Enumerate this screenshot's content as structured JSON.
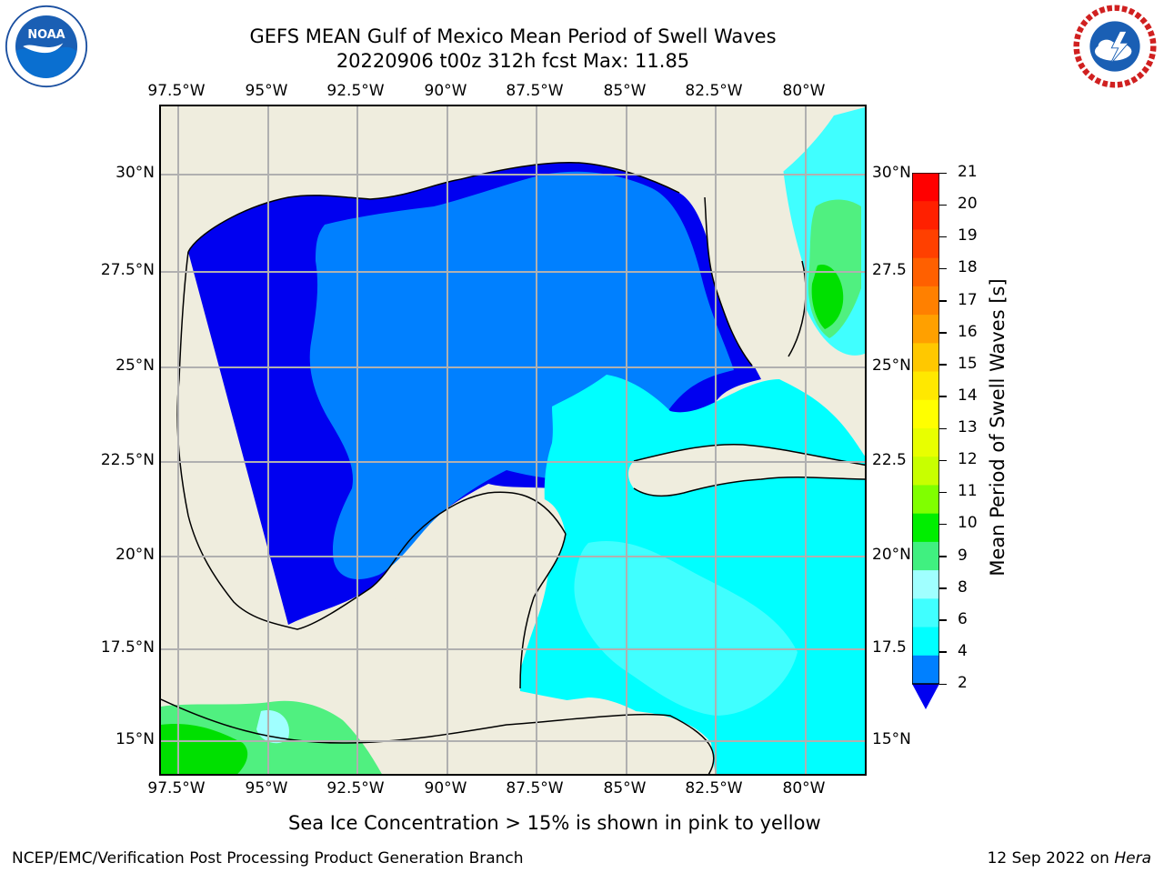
{
  "title": {
    "line1": "GEFS MEAN Gulf of Mexico Mean Period of Swell Waves",
    "line2": "20220906 t00z 312h fcst   Max: 11.85"
  },
  "logos": {
    "left": {
      "name": "noaa-logo",
      "text": "NOAA",
      "ring_text": "NATIONAL OCEANIC AND ATMOSPHERIC ADMINISTRATION · U.S. DEPARTMENT OF COMMERCE"
    },
    "right": {
      "name": "nws-logo",
      "ring_text": "NATIONAL WEATHER SERVICE"
    }
  },
  "map": {
    "lon_labels": [
      "97.5°W",
      "95°W",
      "92.5°W",
      "90°W",
      "87.5°W",
      "85°W",
      "82.5°W",
      "80°W"
    ],
    "lat_labels": [
      "30°N",
      "27.5°N",
      "25°N",
      "22.5°N",
      "20°N",
      "17.5°N",
      "15°N"
    ],
    "lat_labels_right": [
      "30°N",
      "27.5",
      "25°N",
      "22.5",
      "20°N",
      "17.5",
      "15°N"
    ],
    "colors": {
      "land": "#efedde",
      "sea_2_4": "#0080ff",
      "sea_lt2": "#0000f0",
      "sea_4_6": "#00ffff",
      "sea_6_8": "#40ffff",
      "sea_8_9": "#a0ffff",
      "sea_9_10": "#50f080",
      "sea_10_11": "#00e000",
      "grid": "#b0b0b0"
    }
  },
  "colorbar": {
    "title": "Mean Period of Swell Waves [s]",
    "ticks": [
      "21",
      "20",
      "19",
      "18",
      "17",
      "16",
      "15",
      "14",
      "13",
      "12",
      "11",
      "10",
      "9",
      "8",
      "6",
      "4",
      "2"
    ],
    "colors": [
      "#ff0000",
      "#ff2000",
      "#ff4000",
      "#ff6000",
      "#ff8000",
      "#ffa000",
      "#ffc800",
      "#ffe800",
      "#ffff00",
      "#e8ff00",
      "#c8ff00",
      "#80ff00",
      "#00ee00",
      "#40f080",
      "#a0ffff",
      "#40ffff",
      "#00ffff",
      "#0080ff"
    ],
    "extend_color": "#0000f0"
  },
  "note": "Sea Ice Concentration > 15% is shown in pink to yellow",
  "footer": {
    "left": "NCEP/EMC/Verification Post Processing Product Generation Branch",
    "date": "12 Sep 2022 on ",
    "machine": "Hera"
  }
}
